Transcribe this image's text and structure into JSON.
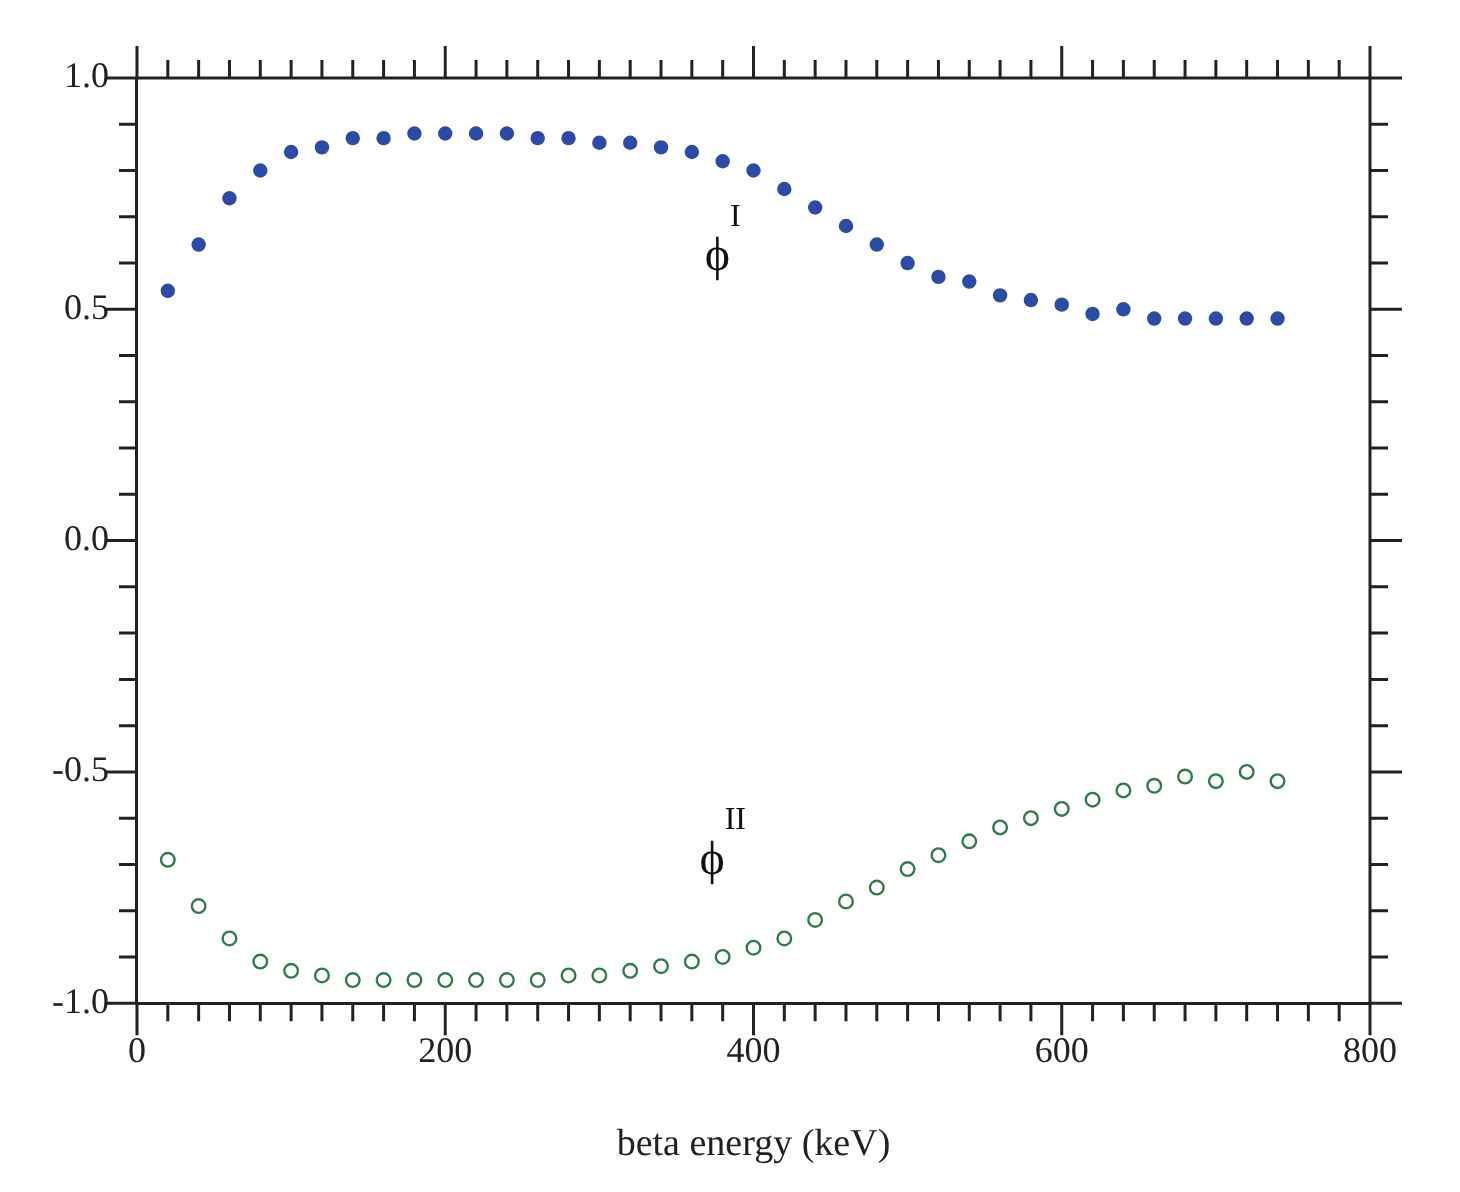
{
  "chart_data": {
    "type": "scatter",
    "xlabel": "beta energy (keV)",
    "x": [
      20,
      40,
      60,
      80,
      100,
      120,
      140,
      160,
      180,
      200,
      220,
      240,
      260,
      280,
      300,
      320,
      340,
      360,
      380,
      400,
      420,
      440,
      460,
      480,
      500,
      520,
      540,
      560,
      580,
      600,
      620,
      640,
      660,
      680,
      700,
      720,
      740
    ],
    "series": [
      {
        "name": "ϕ$^{I}$",
        "color": "#2b4ba8",
        "values": [
          0.54,
          0.64,
          0.74,
          0.8,
          0.84,
          0.85,
          0.87,
          0.87,
          0.88,
          0.88,
          0.88,
          0.88,
          0.87,
          0.87,
          0.86,
          0.86,
          0.85,
          0.84,
          0.82,
          0.8,
          0.76,
          0.72,
          0.68,
          0.64,
          0.6,
          0.57,
          0.56,
          0.53,
          0.52,
          0.51,
          0.49,
          0.5,
          0.48,
          0.48,
          0.48,
          0.48,
          0.48
        ]
      },
      {
        "name": "ϕ$^{II}$",
        "color": "#2e7d4a",
        "values": [
          -0.69,
          -0.79,
          -0.86,
          -0.91,
          -0.93,
          -0.94,
          -0.95,
          -0.95,
          -0.95,
          -0.95,
          -0.95,
          -0.95,
          -0.95,
          -0.94,
          -0.94,
          -0.93,
          -0.92,
          -0.91,
          -0.9,
          -0.88,
          -0.86,
          -0.82,
          -0.78,
          -0.75,
          -0.71,
          -0.68,
          -0.65,
          -0.62,
          -0.6,
          -0.58,
          -0.56,
          -0.54,
          -0.53,
          -0.51,
          -0.52,
          -0.5,
          -0.52
        ]
      }
    ],
    "xlim": [
      0,
      800
    ],
    "xticks": [
      0,
      {
        "value": 20,
        "label": null
      },
      {
        "value": 40,
        "label": null
      },
      {
        "value": 60,
        "label": null
      },
      {
        "value": 80,
        "label": null
      },
      {
        "value": 100,
        "label": null
      },
      {
        "value": 120,
        "label": null
      },
      {
        "value": 140,
        "label": null
      },
      {
        "value": 160,
        "label": null
      },
      {
        "value": 180,
        "label": null
      },
      200,
      {
        "value": 220,
        "label": null
      },
      {
        "value": 240,
        "label": null
      },
      {
        "value": 260,
        "label": null
      },
      {
        "value": 280,
        "label": null
      },
      {
        "value": 300,
        "label": null
      },
      {
        "value": 320,
        "label": null
      },
      {
        "value": 340,
        "label": null
      },
      {
        "value": 360,
        "label": null
      },
      {
        "value": 380,
        "label": null
      },
      400,
      {
        "value": 420,
        "label": null
      },
      {
        "value": 440,
        "label": null
      },
      {
        "value": 460,
        "label": null
      },
      {
        "value": 480,
        "label": null
      },
      {
        "value": 500,
        "label": null
      },
      {
        "value": 520,
        "label": null
      },
      {
        "value": 540,
        "label": null
      },
      {
        "value": 560,
        "label": null
      },
      {
        "value": 580,
        "label": null
      },
      600,
      {
        "value": 620,
        "label": null
      },
      {
        "value": 640,
        "label": null
      },
      {
        "value": 660,
        "label": null
      },
      {
        "value": 680,
        "label": null
      },
      {
        "value": 700,
        "label": null
      },
      {
        "value": 720,
        "label": null
      },
      {
        "value": 740,
        "label": null
      },
      {
        "value": 760,
        "label": null
      },
      {
        "value": 780,
        "label": null
      },
      800
    ],
    "ylim": [
      -1,
      1
    ],
    "yticks": [
      {
        "value": -1,
        "label": "-1.0"
      },
      {
        "value": -0.9,
        "label": null
      },
      {
        "value": -0.8,
        "label": null
      },
      {
        "value": -0.7,
        "label": null
      },
      {
        "value": -0.6,
        "label": null
      },
      {
        "value": -0.5,
        "label": "-0.5"
      },
      {
        "value": -0.4,
        "label": null
      },
      {
        "value": -0.3,
        "label": null
      },
      {
        "value": -0.2,
        "label": null
      },
      {
        "value": -0.1,
        "label": null
      },
      {
        "value": 0,
        "label": "0.0"
      },
      {
        "value": 0.1,
        "label": null
      },
      {
        "value": 0.2,
        "label": null
      },
      {
        "value": 0.3,
        "label": null
      },
      {
        "value": 0.4,
        "label": null
      },
      {
        "value": 0.5,
        "label": "0.5"
      },
      {
        "value": 0.6,
        "label": null
      },
      {
        "value": 0.7,
        "label": null
      },
      {
        "value": 0.8,
        "label": null
      },
      {
        "value": 0.9,
        "label": null
      },
      {
        "value": 1,
        "label": "1.0"
      }
    ],
    "marker": "circle",
    "grid": false,
    "legend": false
  }
}
